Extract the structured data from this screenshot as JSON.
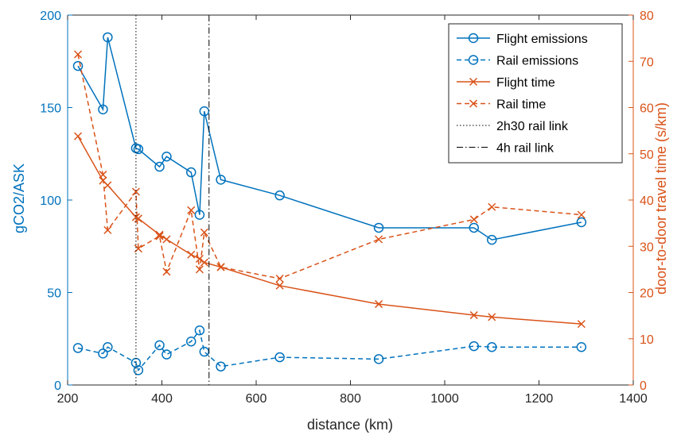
{
  "colors": {
    "blue": "#0072BD",
    "orange": "#D95319",
    "black": "#000000",
    "axis": "#262626"
  },
  "chart_data": {
    "type": "line",
    "xlabel": "distance (km)",
    "ylabel_left": "gCO2/ASK",
    "ylabel_right": "door-to-door travel time (s/km)",
    "xlim": [
      200,
      1400
    ],
    "ylim_left": [
      0,
      200
    ],
    "ylim_right": [
      0,
      80
    ],
    "x_ticks": [
      "200",
      "400",
      "600",
      "800",
      "1000",
      "1200",
      "1400"
    ],
    "y_left_ticks": [
      "0",
      "50",
      "100",
      "150",
      "200"
    ],
    "y_right_ticks": [
      "0",
      "10",
      "20",
      "30",
      "40",
      "50",
      "60",
      "70",
      "80"
    ],
    "grid": false,
    "legend_position": "top-right",
    "series": [
      {
        "name": "Flight emissions",
        "axis": "left",
        "color": "#0072BD",
        "line": "solid",
        "marker": "circle",
        "points": [
          [
            222,
            172.5
          ],
          [
            275,
            149
          ],
          [
            285,
            188
          ],
          [
            345,
            128
          ],
          [
            350,
            127.5
          ],
          [
            395,
            118
          ],
          [
            410,
            123.5
          ],
          [
            462,
            115
          ],
          [
            480,
            92
          ],
          [
            490,
            148
          ],
          [
            525,
            111
          ],
          [
            650,
            102.5
          ],
          [
            860,
            85
          ],
          [
            1062,
            85
          ],
          [
            1100,
            78.5
          ],
          [
            1290,
            88
          ]
        ]
      },
      {
        "name": "Rail emissions",
        "axis": "left",
        "color": "#0072BD",
        "line": "dashed",
        "marker": "circle",
        "points": [
          [
            222,
            20
          ],
          [
            275,
            17
          ],
          [
            285,
            20.5
          ],
          [
            345,
            12
          ],
          [
            350,
            8
          ],
          [
            395,
            21.5
          ],
          [
            410,
            16.5
          ],
          [
            462,
            23.5
          ],
          [
            480,
            29.5
          ],
          [
            490,
            18
          ],
          [
            525,
            10
          ],
          [
            650,
            15
          ],
          [
            860,
            14
          ],
          [
            1062,
            21
          ],
          [
            1100,
            20.5
          ],
          [
            1290,
            20.5
          ]
        ]
      },
      {
        "name": "Flight time",
        "axis": "right",
        "color": "#D95319",
        "line": "solid",
        "marker": "x",
        "points": [
          [
            222,
            53.8
          ],
          [
            275,
            44.2
          ],
          [
            285,
            43.2
          ],
          [
            345,
            36.3
          ],
          [
            350,
            36
          ],
          [
            395,
            32.5
          ],
          [
            410,
            31.5
          ],
          [
            462,
            28.2
          ],
          [
            480,
            27.3
          ],
          [
            490,
            26.5
          ],
          [
            525,
            25.5
          ],
          [
            650,
            21.5
          ],
          [
            860,
            17.5
          ],
          [
            1062,
            15.1
          ],
          [
            1100,
            14.7
          ],
          [
            1290,
            13.2
          ]
        ]
      },
      {
        "name": "Rail time",
        "axis": "right",
        "color": "#D95319",
        "line": "dashed",
        "marker": "x",
        "points": [
          [
            222,
            71.5
          ],
          [
            275,
            45.5
          ],
          [
            285,
            33.5
          ],
          [
            345,
            41.8
          ],
          [
            350,
            29.5
          ],
          [
            395,
            32.2
          ],
          [
            410,
            24.5
          ],
          [
            462,
            37.8
          ],
          [
            480,
            25
          ],
          [
            490,
            33
          ],
          [
            525,
            25.5
          ],
          [
            650,
            23
          ],
          [
            860,
            31.5
          ],
          [
            1062,
            35.8
          ],
          [
            1100,
            38.5
          ],
          [
            1290,
            36.8
          ]
        ]
      },
      {
        "name": "2h30 rail link",
        "axis": "left",
        "color": "#000000",
        "line": "dotted",
        "marker": "none",
        "vline_x": 345
      },
      {
        "name": "4h rail link",
        "axis": "left",
        "color": "#000000",
        "line": "dashdot",
        "marker": "none",
        "vline_x": 500
      }
    ]
  }
}
